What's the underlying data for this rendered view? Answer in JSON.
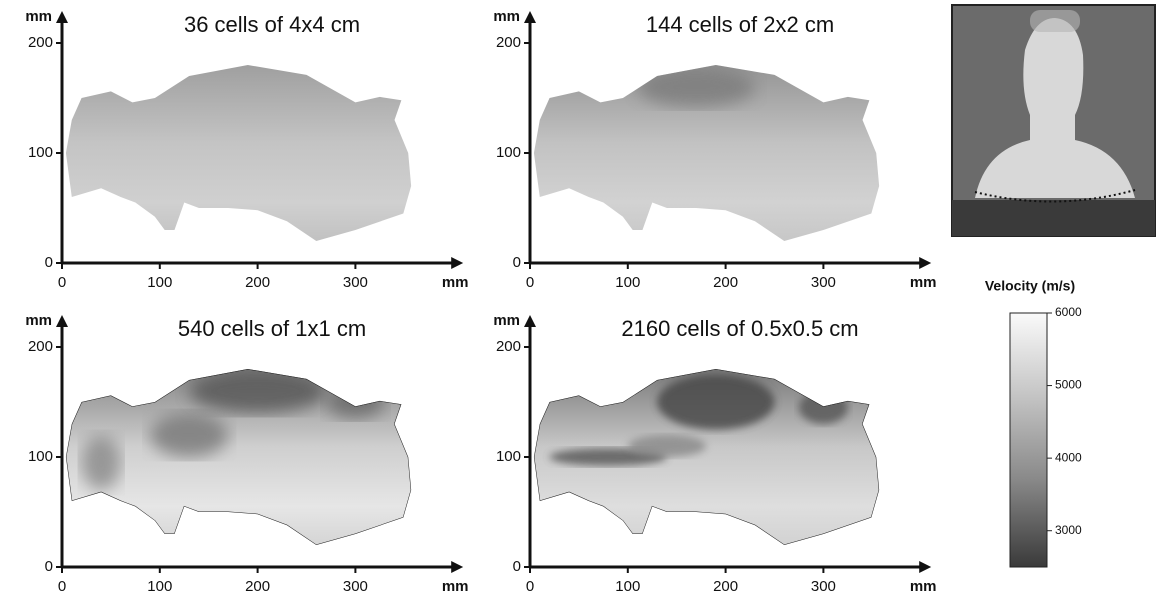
{
  "panels": [
    {
      "title": "36 cells of 4x4 cm",
      "x_unit": "mm",
      "y_unit": "mm",
      "xlim": [
        0,
        400
      ],
      "ylim": [
        0,
        220
      ],
      "xticks": [
        0,
        100,
        200,
        300
      ],
      "yticks": [
        0,
        100,
        200
      ]
    },
    {
      "title": "144 cells of 2x2 cm",
      "x_unit": "mm",
      "y_unit": "mm",
      "xlim": [
        0,
        400
      ],
      "ylim": [
        0,
        220
      ],
      "xticks": [
        0,
        100,
        200,
        300
      ],
      "yticks": [
        0,
        100,
        200
      ]
    },
    {
      "title": "540 cells of 1x1 cm",
      "x_unit": "mm",
      "y_unit": "mm",
      "xlim": [
        0,
        400
      ],
      "ylim": [
        0,
        220
      ],
      "xticks": [
        0,
        100,
        200,
        300
      ],
      "yticks": [
        0,
        100,
        200
      ]
    },
    {
      "title": "2160 cells of 0.5x0.5 cm",
      "x_unit": "mm",
      "y_unit": "mm",
      "xlim": [
        0,
        400
      ],
      "ylim": [
        0,
        220
      ],
      "xticks": [
        0,
        100,
        200,
        300
      ],
      "yticks": [
        0,
        100,
        200
      ]
    }
  ],
  "colorbar": {
    "label": "Velocity (m/s)",
    "lim": [
      2500,
      6000
    ],
    "ticks": [
      3000,
      4000,
      5000,
      6000
    ]
  }
}
